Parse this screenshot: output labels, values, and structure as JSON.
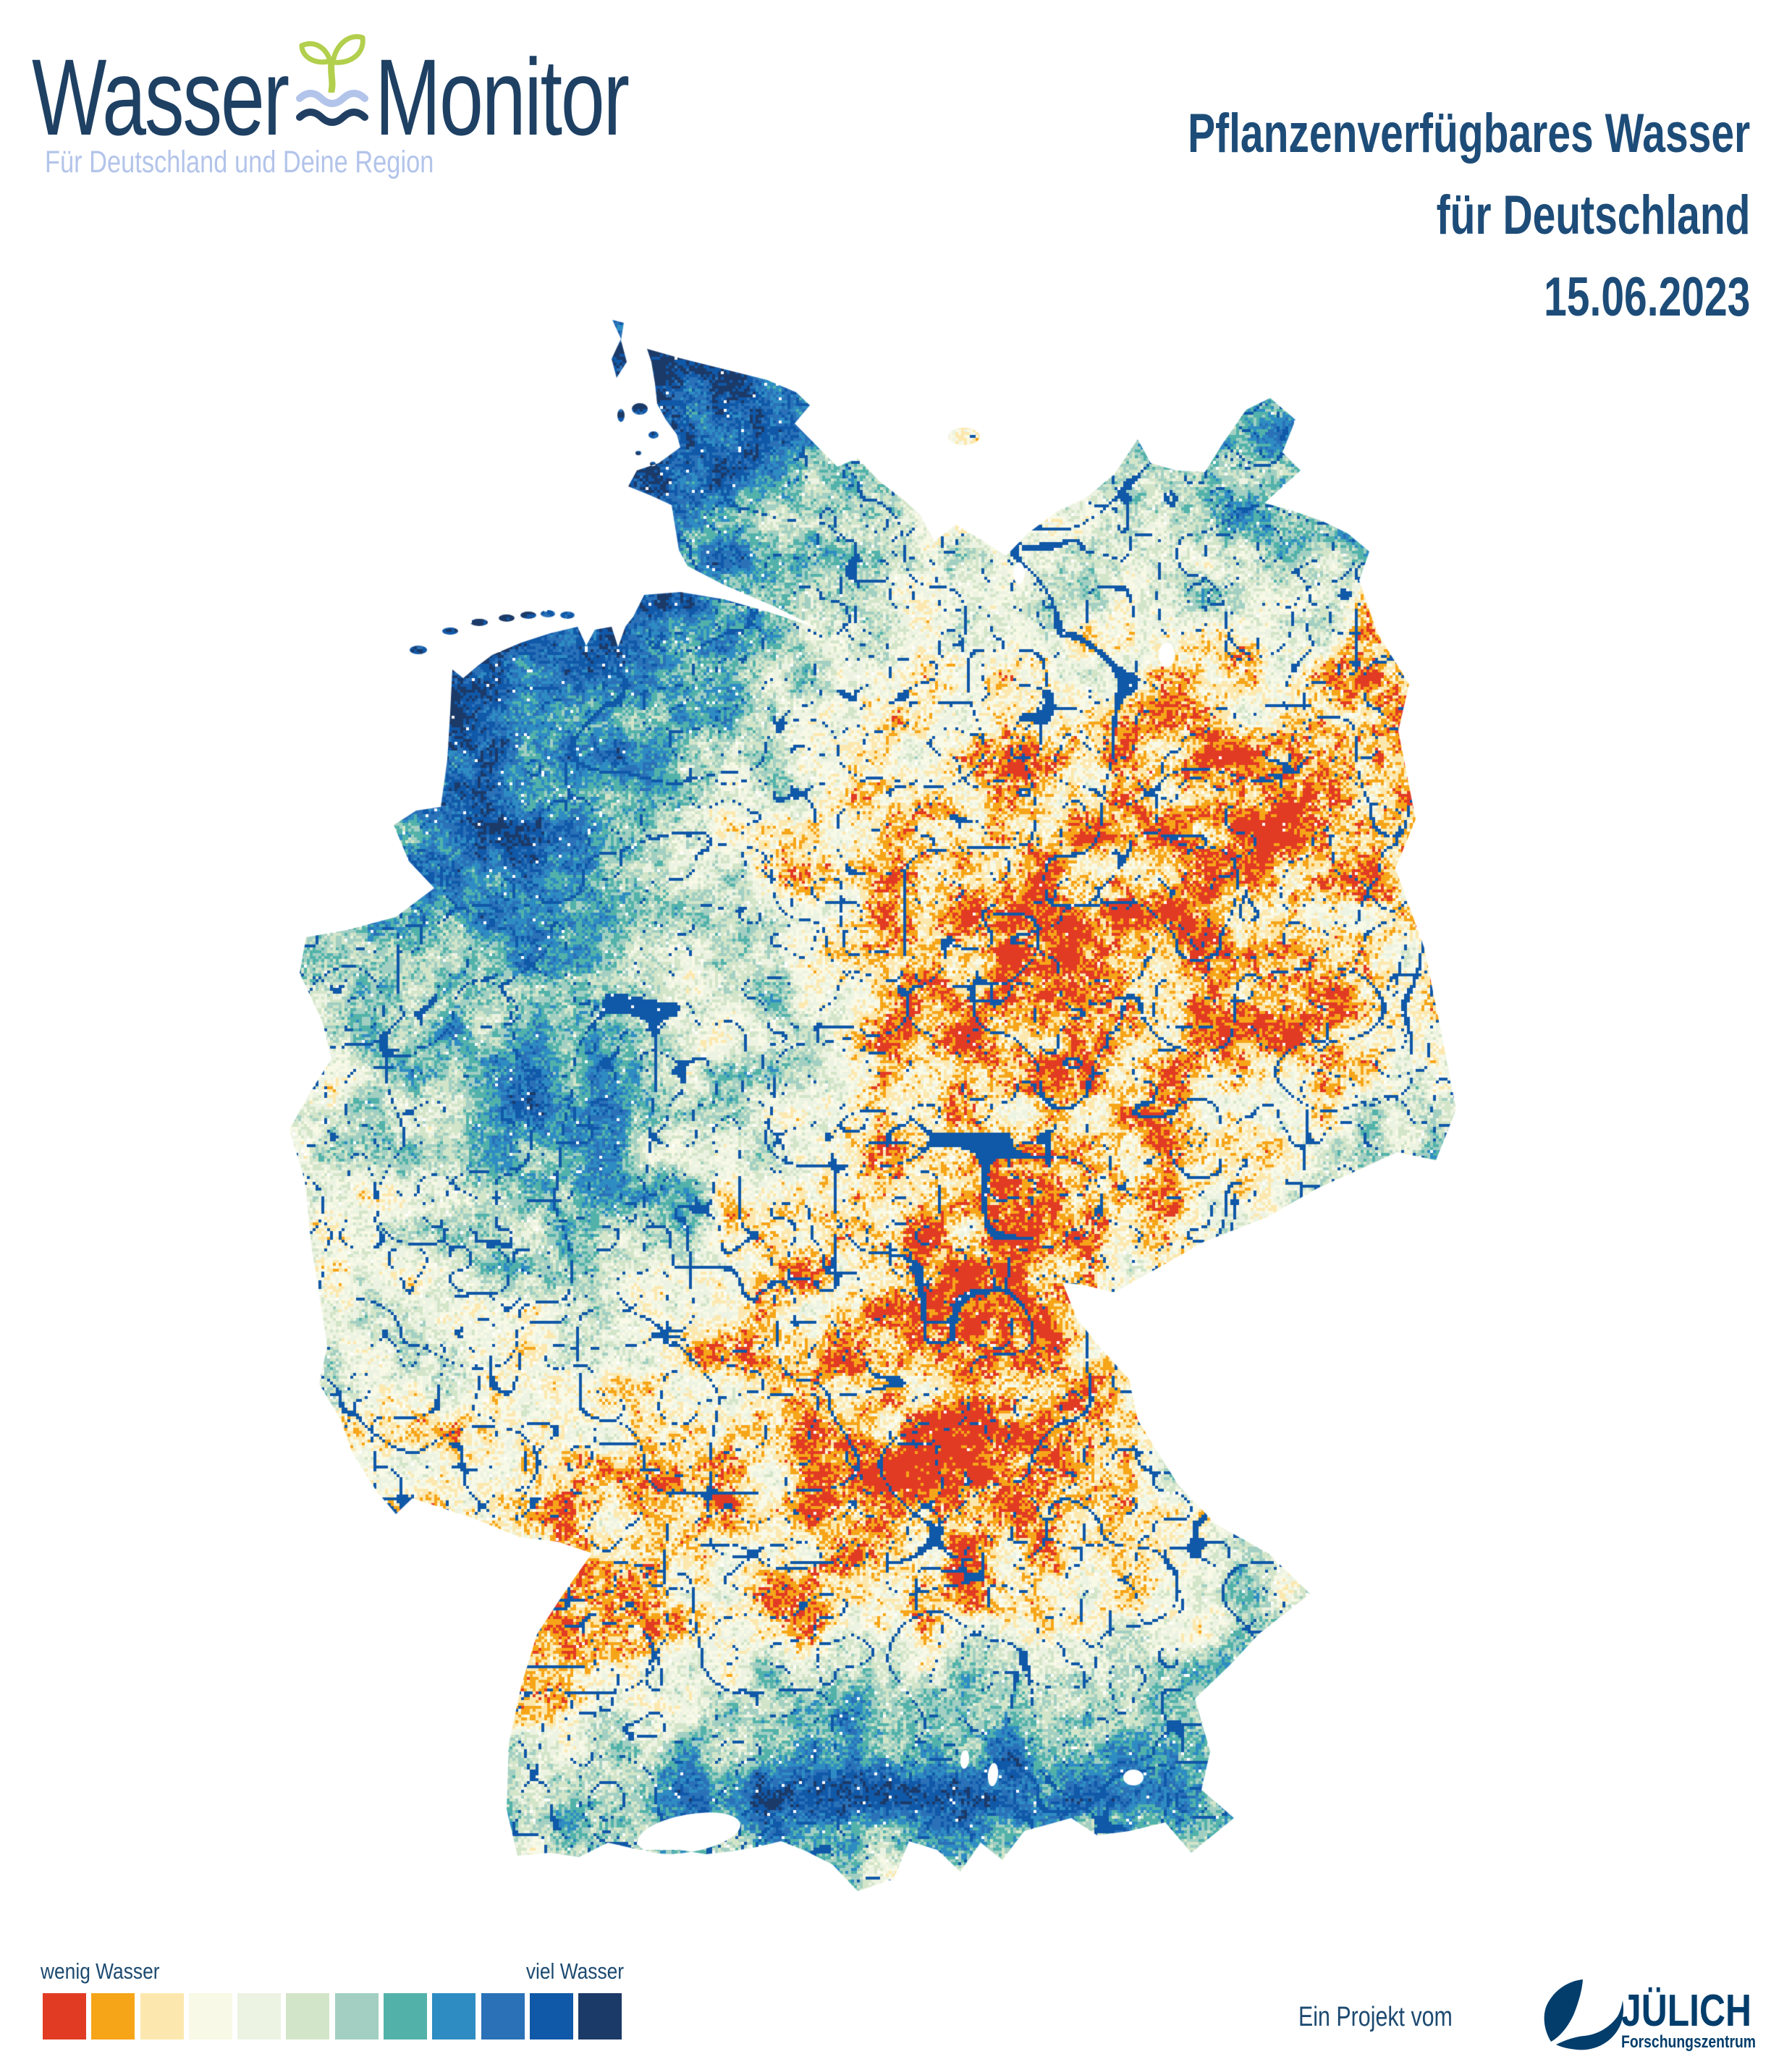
{
  "page": {
    "title": "Wasser-Monitor"
  },
  "header": {
    "logo": {
      "word1": "Wasser",
      "word2": "Monitor",
      "subtitle": "Für Deutschland und Deine Region"
    },
    "title": {
      "line1": "Pflanzenverfügbares Wasser",
      "line2": "für Deutschland",
      "line3": "15.06.2023"
    }
  },
  "legend": {
    "low_label": "wenig Wasser",
    "high_label": "viel Wasser"
  },
  "footer": {
    "credit": "Ein Projekt vom",
    "partner_name": "JÜLICH",
    "partner_subtitle": "Forschungszentrum"
  },
  "colors": {
    "brand_navy": "#1e4063",
    "title_navy": "#1d4c78",
    "subtitle_blue": "#b3c4ea",
    "sprout_green": "#b2cf4d",
    "wave_light": "#b3c4ea",
    "wave_dark": "#203f63",
    "legend_text": "#1d4a70",
    "juelich_blue": "#023d6b"
  },
  "chart_data": {
    "type": "heatmap",
    "title": "Pflanzenverfügbares Wasser für Deutschland",
    "date": "15.06.2023",
    "region": "Deutschland",
    "legend_position": "bottom-left",
    "scale": {
      "low_label": "wenig Wasser",
      "high_label": "viel Wasser",
      "colors": [
        "#e23b24",
        "#f6a519",
        "#fce8ae",
        "#f8f9e6",
        "#edf3e2",
        "#d3e5c9",
        "#a2cfc2",
        "#52b2aa",
        "#2e8cc3",
        "#2a71b8",
        "#1058a8",
        "#1c3a68"
      ]
    },
    "region_water_levels": {
      "description": "Geschätzte Verteilung des pflanzenverfügbaren Wassers: 0 = wenig Wasser (rot) bis 11 = viel Wasser (dunkelblau). Raster 13 Spalten (West nach Ost) x 17 Zeilen (Nord nach Süd).",
      "grid": [
        [
          9,
          9,
          9,
          9.5,
          10,
          9.5,
          8,
          7,
          7,
          7,
          7,
          7,
          7
        ],
        [
          9,
          9,
          9,
          10,
          10,
          8.5,
          5,
          4,
          6,
          7,
          7.5,
          7.5,
          7
        ],
        [
          9,
          9,
          9.5,
          10,
          9,
          6,
          4,
          3.5,
          5,
          6,
          7,
          8,
          7
        ],
        [
          9,
          10,
          10,
          10,
          9,
          6.5,
          5,
          4,
          4,
          4.5,
          4,
          3,
          3
        ],
        [
          9,
          10,
          10,
          9,
          7.5,
          5,
          3,
          2,
          2,
          2,
          1.5,
          1.5,
          2
        ],
        [
          8,
          9,
          9,
          8,
          6,
          4,
          2,
          1.5,
          1,
          1,
          1,
          1,
          1.5
        ],
        [
          6,
          7,
          8,
          7,
          5,
          3,
          1.5,
          1,
          0.8,
          0.8,
          1,
          1,
          1.5
        ],
        [
          4,
          6,
          7,
          7,
          5,
          5.5,
          2,
          1,
          0.8,
          1,
          1,
          1.5,
          4
        ],
        [
          4,
          5,
          7.5,
          8,
          6,
          4,
          2,
          1.5,
          1,
          1.5,
          2,
          4,
          6
        ],
        [
          5,
          4,
          6,
          7,
          5,
          3,
          1.5,
          1,
          1.5,
          2,
          3,
          5,
          6
        ],
        [
          5,
          4,
          4,
          5,
          3,
          2,
          1.5,
          1.5,
          2,
          3,
          4,
          5,
          5
        ],
        [
          4,
          4,
          3,
          3,
          2,
          1.5,
          0.8,
          0.8,
          1.5,
          3,
          4,
          4,
          4
        ],
        [
          3,
          2,
          2,
          2,
          2,
          1.5,
          0.8,
          1,
          2,
          4,
          4,
          4,
          4
        ],
        [
          2,
          2,
          2,
          2.5,
          2,
          2,
          1.5,
          2,
          3,
          4,
          5,
          5,
          5
        ],
        [
          2,
          2,
          2,
          3,
          4,
          6,
          7,
          7,
          6,
          6,
          6,
          6,
          6
        ],
        [
          4,
          5,
          6,
          7,
          8,
          9,
          9,
          9,
          9,
          8,
          8,
          8,
          8
        ],
        [
          3,
          3,
          3,
          3,
          4,
          4,
          4,
          3,
          4,
          4,
          5,
          5,
          5
        ]
      ]
    }
  }
}
